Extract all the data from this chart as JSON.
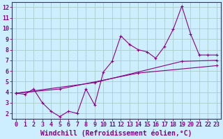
{
  "xlabel": "Windchill (Refroidissement éolien,°C)",
  "bg_color": "#cceeff",
  "line_color": "#880088",
  "grid_color": "#aacccc",
  "xlim": [
    -0.5,
    23.5
  ],
  "ylim": [
    1.5,
    12.5
  ],
  "xticks": [
    0,
    1,
    2,
    3,
    4,
    5,
    6,
    7,
    8,
    9,
    10,
    11,
    12,
    13,
    14,
    15,
    16,
    17,
    18,
    19,
    20,
    21,
    22,
    23
  ],
  "yticks": [
    2,
    3,
    4,
    5,
    6,
    7,
    8,
    9,
    10,
    11,
    12
  ],
  "series1_x": [
    0,
    1,
    2,
    3,
    4,
    5,
    6,
    7,
    8,
    9,
    10,
    11,
    12,
    13,
    14,
    15,
    16,
    17,
    18,
    19,
    20,
    21,
    22,
    23
  ],
  "series1_y": [
    3.9,
    3.8,
    4.3,
    3.0,
    2.2,
    1.7,
    2.2,
    2.0,
    4.3,
    2.8,
    5.9,
    6.9,
    9.3,
    8.5,
    8.0,
    7.8,
    7.2,
    8.3,
    9.9,
    12.1,
    9.5,
    7.5,
    7.5,
    7.5
  ],
  "series2_x": [
    0,
    9,
    19,
    23
  ],
  "series2_y": [
    3.9,
    4.9,
    6.9,
    7.0
  ],
  "series3_x": [
    0,
    5,
    14,
    23
  ],
  "series3_y": [
    3.9,
    4.3,
    5.8,
    6.5
  ],
  "tick_fontsize": 6,
  "xlabel_fontsize": 7
}
